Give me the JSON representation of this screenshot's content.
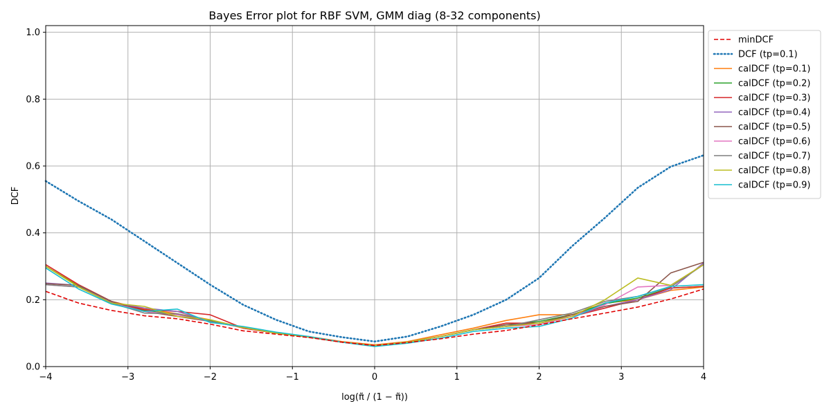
{
  "chart_data": {
    "type": "line",
    "title": "Bayes Error plot for RBF SVM, GMM diag (8-32 components)",
    "xlabel": "log(π̃ / (1 − π̃))",
    "ylabel": "DCF",
    "xlim": [
      -4,
      4
    ],
    "ylim": [
      0,
      1.02
    ],
    "xticks": [
      "−4",
      "−3",
      "−2",
      "−1",
      "0",
      "1",
      "2",
      "3",
      "4"
    ],
    "yticks": [
      "0.0",
      "0.2",
      "0.4",
      "0.6",
      "0.8",
      "1.0"
    ],
    "grid": true,
    "legend_position": "outside-right",
    "x": [
      -4,
      -3.6,
      -3.2,
      -2.8,
      -2.4,
      -2,
      -1.6,
      -1.2,
      -0.8,
      -0.4,
      0,
      0.4,
      0.8,
      1.2,
      1.6,
      2,
      2.4,
      2.8,
      3.2,
      3.6,
      4
    ],
    "series": [
      {
        "name": "minDCF",
        "color": "#e00000",
        "dash": "dashed",
        "values": [
          0.225,
          0.19,
          0.168,
          0.152,
          0.143,
          0.127,
          0.107,
          0.097,
          0.087,
          0.073,
          0.063,
          0.072,
          0.083,
          0.097,
          0.108,
          0.125,
          0.143,
          0.16,
          0.178,
          0.202,
          0.232
        ]
      },
      {
        "name": "DCF (tp=0.1)",
        "color": "#1f77b4",
        "dash": "dotted",
        "values": [
          0.555,
          0.495,
          0.44,
          0.375,
          0.31,
          0.245,
          0.185,
          0.14,
          0.105,
          0.088,
          0.075,
          0.09,
          0.12,
          0.155,
          0.2,
          0.265,
          0.36,
          0.445,
          0.535,
          0.598,
          0.632
        ]
      },
      {
        "name": "calDCF (tp=0.1)",
        "color": "#ff7f0e",
        "dash": "solid",
        "values": [
          0.3,
          0.242,
          0.195,
          0.172,
          0.158,
          0.14,
          0.115,
          0.1,
          0.09,
          0.075,
          0.065,
          0.075,
          0.095,
          0.115,
          0.138,
          0.155,
          0.155,
          0.19,
          0.2,
          0.228,
          0.238
        ]
      },
      {
        "name": "calDCF (tp=0.2)",
        "color": "#2ca02c",
        "dash": "solid",
        "values": [
          0.3,
          0.24,
          0.192,
          0.168,
          0.155,
          0.138,
          0.117,
          0.1,
          0.088,
          0.073,
          0.063,
          0.073,
          0.09,
          0.11,
          0.125,
          0.135,
          0.155,
          0.188,
          0.205,
          0.235,
          0.24
        ]
      },
      {
        "name": "calDCF (tp=0.3)",
        "color": "#d62728",
        "dash": "solid",
        "values": [
          0.305,
          0.245,
          0.195,
          0.17,
          0.165,
          0.155,
          0.115,
          0.1,
          0.088,
          0.073,
          0.063,
          0.073,
          0.09,
          0.11,
          0.13,
          0.13,
          0.15,
          0.175,
          0.2,
          0.235,
          0.24
        ]
      },
      {
        "name": "calDCF (tp=0.4)",
        "color": "#9467bd",
        "dash": "solid",
        "values": [
          0.25,
          0.243,
          0.192,
          0.175,
          0.165,
          0.135,
          0.117,
          0.1,
          0.088,
          0.073,
          0.063,
          0.073,
          0.09,
          0.11,
          0.12,
          0.13,
          0.15,
          0.18,
          0.2,
          0.23,
          0.31
        ]
      },
      {
        "name": "calDCF (tp=0.5)",
        "color": "#8c564b",
        "dash": "solid",
        "values": [
          0.248,
          0.243,
          0.195,
          0.165,
          0.15,
          0.135,
          0.117,
          0.1,
          0.088,
          0.073,
          0.063,
          0.073,
          0.09,
          0.11,
          0.125,
          0.13,
          0.155,
          0.18,
          0.195,
          0.28,
          0.312
        ]
      },
      {
        "name": "calDCF (tp=0.6)",
        "color": "#e377c2",
        "dash": "solid",
        "values": [
          0.245,
          0.238,
          0.19,
          0.165,
          0.155,
          0.135,
          0.117,
          0.1,
          0.088,
          0.073,
          0.063,
          0.073,
          0.09,
          0.11,
          0.12,
          0.125,
          0.15,
          0.185,
          0.238,
          0.243,
          0.305
        ]
      },
      {
        "name": "calDCF (tp=0.7)",
        "color": "#7f7f7f",
        "dash": "solid",
        "values": [
          0.245,
          0.238,
          0.19,
          0.16,
          0.158,
          0.135,
          0.117,
          0.1,
          0.088,
          0.073,
          0.063,
          0.073,
          0.09,
          0.11,
          0.12,
          0.14,
          0.16,
          0.195,
          0.21,
          0.238,
          0.305
        ]
      },
      {
        "name": "calDCF (tp=0.8)",
        "color": "#bcbd22",
        "dash": "solid",
        "values": [
          0.3,
          0.238,
          0.19,
          0.18,
          0.15,
          0.14,
          0.117,
          0.1,
          0.088,
          0.073,
          0.063,
          0.073,
          0.09,
          0.11,
          0.12,
          0.13,
          0.15,
          0.2,
          0.265,
          0.243,
          0.305
        ]
      },
      {
        "name": "calDCF (tp=0.9)",
        "color": "#17becf",
        "dash": "solid",
        "values": [
          0.295,
          0.232,
          0.187,
          0.165,
          0.172,
          0.132,
          0.12,
          0.103,
          0.09,
          0.073,
          0.06,
          0.07,
          0.085,
          0.105,
          0.115,
          0.12,
          0.145,
          0.19,
          0.21,
          0.24,
          0.245
        ]
      }
    ]
  }
}
